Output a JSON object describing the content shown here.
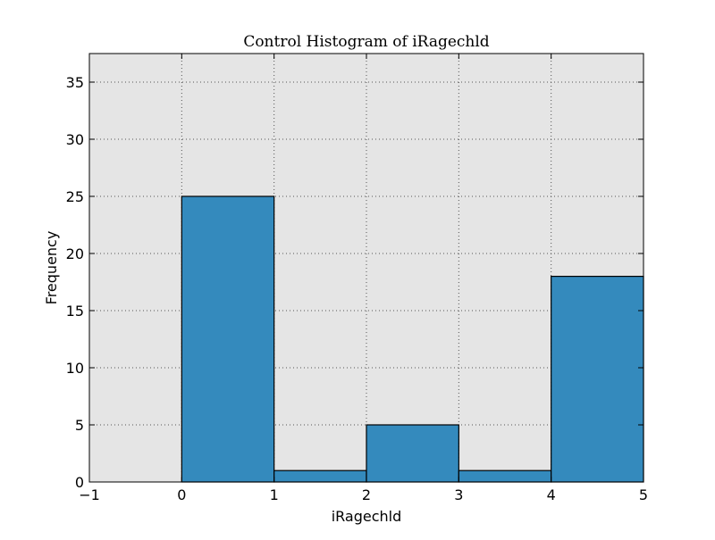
{
  "chart_data": {
    "type": "bar",
    "title": "Control Histogram of iRagechld",
    "xlabel": "iRagechld",
    "ylabel": "Frequency",
    "bins": [
      {
        "x0": 0,
        "x1": 1,
        "value": 25
      },
      {
        "x0": 1,
        "x1": 2,
        "value": 1
      },
      {
        "x0": 2,
        "x1": 3,
        "value": 5
      },
      {
        "x0": 3,
        "x1": 4,
        "value": 1
      },
      {
        "x0": 4,
        "x1": 5,
        "value": 18
      }
    ],
    "xlim": [
      -1,
      5
    ],
    "ylim": [
      0,
      37.5
    ],
    "xticks": [
      -1,
      0,
      1,
      2,
      3,
      4,
      5
    ],
    "xtick_labels": [
      "−1",
      "0",
      "1",
      "2",
      "3",
      "4",
      "5"
    ],
    "yticks": [
      0,
      5,
      10,
      15,
      20,
      25,
      30,
      35
    ],
    "ytick_labels": [
      "0",
      "5",
      "10",
      "15",
      "20",
      "25",
      "30",
      "35"
    ],
    "grid": true,
    "legend": "none",
    "colors": {
      "bar_fill": "#348abd",
      "bar_edge": "#000000",
      "plot_background": "#e5e5e5",
      "grid": "#555555"
    }
  }
}
